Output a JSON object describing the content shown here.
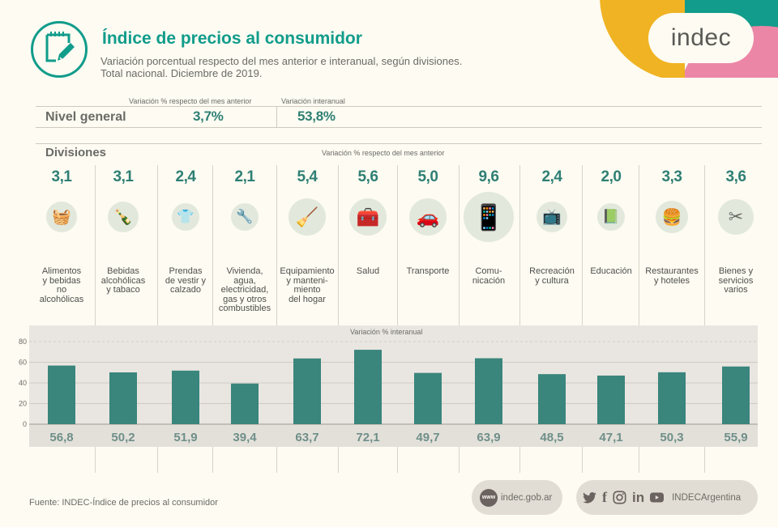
{
  "header": {
    "title": "Índice de precios al consumidor",
    "subtitle_line1": "Variación porcentual respecto del mes anterior e interanual, según divisiones.",
    "subtitle_line2": "Total nacional. Diciembre de 2019.",
    "logo_text": "indec",
    "title_icon": "notepad-pencil-icon",
    "colors": {
      "accent": "#119c8b",
      "yellow": "#f0b323",
      "pink": "#ec86a6",
      "value_text": "#2f7f74",
      "bar": "#3a857c"
    }
  },
  "nivel_general": {
    "label": "Nivel general",
    "label_month": "Variación % respecto del mes anterior",
    "label_year": "Variación interanual",
    "month_value": "3,7%",
    "year_value": "53,8%"
  },
  "divisiones": {
    "title": "Divisiones",
    "subtitle": "Variación % respecto del mes anterior",
    "items": [
      {
        "label": "Alimentos\ny bebidas\nno\nalcohólicas",
        "month": "3,1",
        "icon": "food-basket-icon"
      },
      {
        "label": "Bebidas\nalcohólicas\ny tabaco",
        "month": "3,1",
        "icon": "bottle-icon"
      },
      {
        "label": "Prendas\nde vestir y\ncalzado",
        "month": "2,4",
        "icon": "clothing-shoe-icon"
      },
      {
        "label": "Vivienda,\nagua,\nelectricidad,\ngas y otros\ncombustibles",
        "month": "2,1",
        "icon": "utilities-icon"
      },
      {
        "label": "Equipamiento\ny manteni-\nmiento\ndel hogar",
        "month": "5,4",
        "icon": "appliance-icon"
      },
      {
        "label": "Salud",
        "month": "5,6",
        "icon": "first-aid-kit-icon"
      },
      {
        "label": "Transporte",
        "month": "5,0",
        "icon": "car-wrench-icon"
      },
      {
        "label": "Comu-\nnicación",
        "month": "9,6",
        "icon": "phone-signal-icon"
      },
      {
        "label": "Recreación\ny cultura",
        "month": "2,4",
        "icon": "tv-ticket-icon"
      },
      {
        "label": "Educación",
        "month": "2,0",
        "icon": "book-icon"
      },
      {
        "label": "Restaurantes\ny hoteles",
        "month": "3,3",
        "icon": "burger-drink-icon"
      },
      {
        "label": "Bienes y\nservicios\nvarios",
        "month": "3,6",
        "icon": "scissors-comb-icon"
      }
    ]
  },
  "chart_data": {
    "type": "bar",
    "title": "Variación % interanual",
    "categories": [
      "Alimentos y bebidas no alcohólicas",
      "Bebidas alcohólicas y tabaco",
      "Prendas de vestir y calzado",
      "Vivienda, agua, electricidad, gas y otros combustibles",
      "Equipamiento y mantenimiento del hogar",
      "Salud",
      "Transporte",
      "Comunicación",
      "Recreación y cultura",
      "Educación",
      "Restaurantes y hoteles",
      "Bienes y servicios varios"
    ],
    "values": [
      56.8,
      50.2,
      51.9,
      39.4,
      63.7,
      72.1,
      49.7,
      63.9,
      48.5,
      47.1,
      50.3,
      55.9
    ],
    "value_labels": [
      "56,8",
      "50,2",
      "51,9",
      "39,4",
      "63,7",
      "72,1",
      "49,7",
      "63,9",
      "48,5",
      "47,1",
      "50,3",
      "55,9"
    ],
    "yticks": [
      "0",
      "20",
      "40",
      "60",
      "80"
    ],
    "ylim": [
      0,
      80
    ],
    "xlabel": "",
    "ylabel": "",
    "grid": true,
    "monthly_series": {
      "name": "Variación % respecto del mes anterior",
      "values": [
        3.1,
        3.1,
        2.4,
        2.1,
        5.4,
        5.6,
        5.0,
        9.6,
        2.4,
        2.0,
        3.3,
        3.6
      ]
    }
  },
  "footer": {
    "source": "Fuente: INDEC-Índice de precios al consumidor",
    "website": "indec.gob.ar",
    "www_badge": "www",
    "social_handle": "INDECArgentina",
    "social_icons": [
      "twitter-icon",
      "facebook-icon",
      "instagram-icon",
      "linkedin-icon",
      "youtube-icon"
    ]
  }
}
